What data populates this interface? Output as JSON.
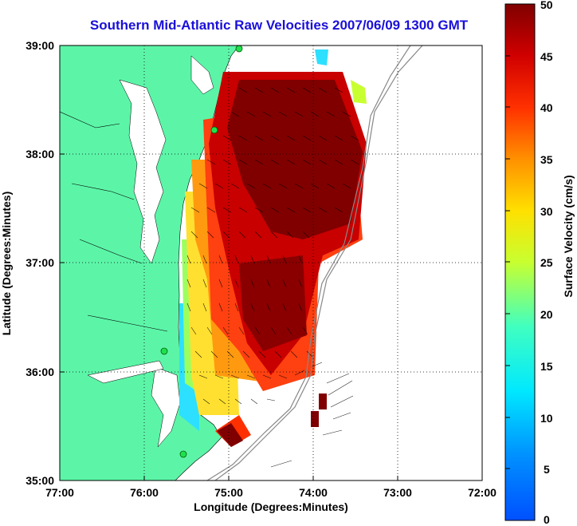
{
  "title": "Southern Mid-Atlantic Raw Velocities 2007/06/09 1300 GMT",
  "xlabel": "Longitude (Degrees:Minutes)",
  "ylabel": "Latitude (Degrees:Minutes)",
  "xticks": [
    "77:00",
    "76:00",
    "75:00",
    "74:00",
    "73:00",
    "72:00"
  ],
  "yticks": [
    "39:00",
    "38:00",
    "37:00",
    "36:00",
    "35:00"
  ],
  "colorbar": {
    "label": "Surface Velocity (cm/s)",
    "ticks": [
      "50",
      "45",
      "40",
      "35",
      "30",
      "25",
      "20",
      "15",
      "10",
      "5",
      "0"
    ]
  },
  "colors": {
    "land": "#5cf5a8",
    "title": "#1a10d8"
  },
  "chart_data": {
    "type": "heatmap",
    "xlim": [
      -77,
      -72
    ],
    "ylim": [
      35,
      39
    ],
    "clim": [
      0,
      50
    ],
    "colormap": "jet",
    "grid": true,
    "legend_position": "right colorbar"
  }
}
